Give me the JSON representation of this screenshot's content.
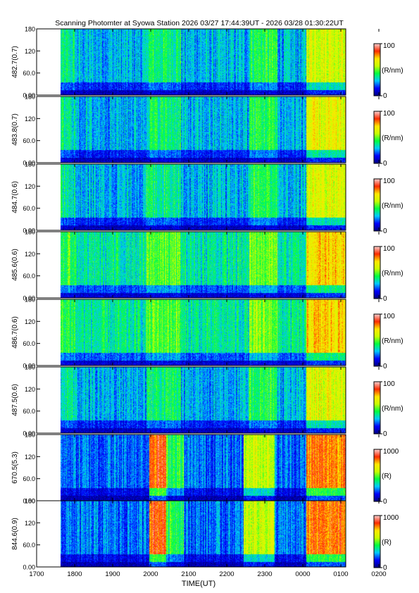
{
  "chart_data": {
    "type": "heatmap",
    "title": "Scanning Photomter at Syowa Station 2026 03/27 17:44:39UT - 2026 03/28 01:30:22UT",
    "xlabel": "TIME(UT)",
    "x_ticks": [
      "1700",
      "1800",
      "1900",
      "2000",
      "2100",
      "2200",
      "2300",
      "0000",
      "0100",
      "0200"
    ],
    "y_ticks": [
      "0.00",
      "60.0",
      "120",
      "180"
    ],
    "ylim": [
      0,
      180
    ],
    "colormap": [
      "#00007f",
      "#0000ff",
      "#00c8ff",
      "#00ff40",
      "#c8ff00",
      "#ffe600",
      "#ff2a00",
      "#ffd2d2"
    ],
    "panels": [
      {
        "label": "482.7(0.7)",
        "unit": "(R/nm)",
        "cbar_min": "0",
        "cbar_max": "100"
      },
      {
        "label": "483.8(0.7)",
        "unit": "(R/nm)",
        "cbar_min": "0",
        "cbar_max": "100"
      },
      {
        "label": "484.7(0.6)",
        "unit": "(R/nm)",
        "cbar_min": "0",
        "cbar_max": "100"
      },
      {
        "label": "485.6(0.6)",
        "unit": "(R/nm)",
        "cbar_min": "0",
        "cbar_max": "100"
      },
      {
        "label": "486.7(0.6)",
        "unit": "(R/nm)",
        "cbar_min": "0",
        "cbar_max": "100"
      },
      {
        "label": "487.5(0.6)",
        "unit": "(R/nm)",
        "cbar_min": "0",
        "cbar_max": "100"
      },
      {
        "label": "670.5(5.3)",
        "unit": "(R)",
        "cbar_min": "0",
        "cbar_max": "1000"
      },
      {
        "label": "844.6(0.9)",
        "unit": "(R)",
        "cbar_min": "0",
        "cbar_max": "1000"
      }
    ]
  }
}
